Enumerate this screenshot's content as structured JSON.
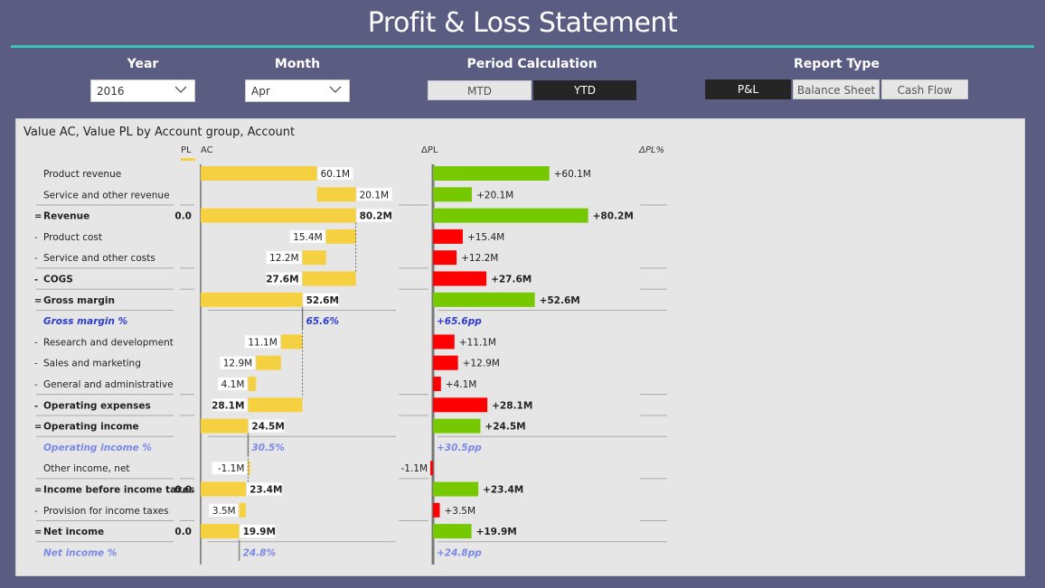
{
  "title": "Profit & Loss Statement",
  "slicers": {
    "year": {
      "label": "Year",
      "value": "2016"
    },
    "month": {
      "label": "Month",
      "value": "Apr"
    },
    "period": {
      "label": "Period Calculation",
      "options": [
        "MTD",
        "YTD"
      ],
      "selected": "YTD"
    },
    "report": {
      "label": "Report Type",
      "options": [
        "P&L",
        "Balance Sheet",
        "Cash Flow"
      ],
      "selected": "P&L"
    }
  },
  "visual": {
    "title": "Value AC, Value PL by Account group, Account",
    "col_pl": "PL",
    "col_ac": "AC",
    "col_dpl": "ΔPL",
    "col_dplpct": "ΔPL%"
  },
  "colors": {
    "ac_bar": "#f5d142",
    "positive": "#76c800",
    "negative": "#ff0000",
    "percent_dark": "#2b3bd0",
    "percent_light": "#7a88e8"
  },
  "chart_data": {
    "type": "bar",
    "rows": [
      {
        "label": "Product revenue",
        "prefix": "",
        "kind": "item",
        "sign": 1,
        "ac": 60.1,
        "ac_label": "60.1M",
        "pl": "",
        "dpl": 60.1,
        "dpl_label": "+60.1M"
      },
      {
        "label": "Service and other revenue",
        "prefix": "",
        "kind": "item",
        "sign": 1,
        "ac": 20.1,
        "ac_label": "20.1M",
        "pl": "",
        "dpl": 20.1,
        "dpl_label": "+20.1M"
      },
      {
        "label": "Revenue",
        "prefix": "=",
        "kind": "total",
        "sign": 1,
        "ac": 80.2,
        "ac_label": "80.2M",
        "pl": "0.0",
        "dpl": 80.2,
        "dpl_label": "+80.2M"
      },
      {
        "label": "Product cost",
        "prefix": "-",
        "kind": "item",
        "sign": -1,
        "ac": 15.4,
        "ac_label": "15.4M",
        "pl": "",
        "dpl": -15.4,
        "dpl_label": "+15.4M"
      },
      {
        "label": "Service and other costs",
        "prefix": "-",
        "kind": "item",
        "sign": -1,
        "ac": 12.2,
        "ac_label": "12.2M",
        "pl": "",
        "dpl": -12.2,
        "dpl_label": "+12.2M"
      },
      {
        "label": "COGS",
        "prefix": "-",
        "kind": "subtotal",
        "sign": -1,
        "ac": 27.6,
        "ac_label": "27.6M",
        "pl": "",
        "dpl": -27.6,
        "dpl_label": "+27.6M"
      },
      {
        "label": "Gross margin",
        "prefix": "=",
        "kind": "total",
        "sign": 1,
        "ac": 52.6,
        "ac_label": "52.6M",
        "pl": "",
        "dpl": 52.6,
        "dpl_label": "+52.6M"
      },
      {
        "label": "Gross margin %",
        "prefix": "",
        "kind": "percent",
        "style": "dark",
        "ac": 52.6,
        "ac_label": "65.6%",
        "pl": "",
        "dpl": 0,
        "dpl_label": "+65.6pp"
      },
      {
        "label": "Research and development",
        "prefix": "-",
        "kind": "item",
        "sign": -1,
        "ac": 11.1,
        "ac_label": "11.1M",
        "pl": "",
        "dpl": -11.1,
        "dpl_label": "+11.1M"
      },
      {
        "label": "Sales and marketing",
        "prefix": "-",
        "kind": "item",
        "sign": -1,
        "ac": 12.9,
        "ac_label": "12.9M",
        "pl": "",
        "dpl": -12.9,
        "dpl_label": "+12.9M"
      },
      {
        "label": "General and administrative",
        "prefix": "-",
        "kind": "item",
        "sign": -1,
        "ac": 4.1,
        "ac_label": "4.1M",
        "pl": "",
        "dpl": -4.1,
        "dpl_label": "+4.1M"
      },
      {
        "label": "Operating expenses",
        "prefix": "-",
        "kind": "subtotal",
        "sign": -1,
        "ac": 28.1,
        "ac_label": "28.1M",
        "pl": "",
        "dpl": -28.1,
        "dpl_label": "+28.1M"
      },
      {
        "label": "Operating income",
        "prefix": "=",
        "kind": "total",
        "sign": 1,
        "ac": 24.5,
        "ac_label": "24.5M",
        "pl": "",
        "dpl": 24.5,
        "dpl_label": "+24.5M"
      },
      {
        "label": "Operating income %",
        "prefix": "",
        "kind": "percent",
        "style": "light",
        "ac": 24.5,
        "ac_label": "30.5%",
        "pl": "",
        "dpl": 0,
        "dpl_label": "+30.5pp"
      },
      {
        "label": "Other income, net",
        "prefix": "",
        "kind": "item",
        "sign": -1,
        "ac": -1.1,
        "ac_label": "-1.1M",
        "pl": "",
        "dpl": -1.1,
        "dpl_label": "-1.1M"
      },
      {
        "label": "Income before income taxes",
        "prefix": "=",
        "kind": "total",
        "sign": 1,
        "ac": 23.4,
        "ac_label": "23.4M",
        "pl": "0.0",
        "dpl": 23.4,
        "dpl_label": "+23.4M"
      },
      {
        "label": "Provision for income taxes",
        "prefix": "-",
        "kind": "item",
        "sign": -1,
        "ac": 3.5,
        "ac_label": "3.5M",
        "pl": "",
        "dpl": -3.5,
        "dpl_label": "+3.5M"
      },
      {
        "label": "Net income",
        "prefix": "=",
        "kind": "total",
        "sign": 1,
        "ac": 19.9,
        "ac_label": "19.9M",
        "pl": "0.0",
        "dpl": 19.9,
        "dpl_label": "+19.9M"
      },
      {
        "label": "Net income %",
        "prefix": "",
        "kind": "percent",
        "style": "light",
        "ac": 19.9,
        "ac_label": "24.8%",
        "pl": "",
        "dpl": 0,
        "dpl_label": "+24.8pp"
      }
    ]
  }
}
